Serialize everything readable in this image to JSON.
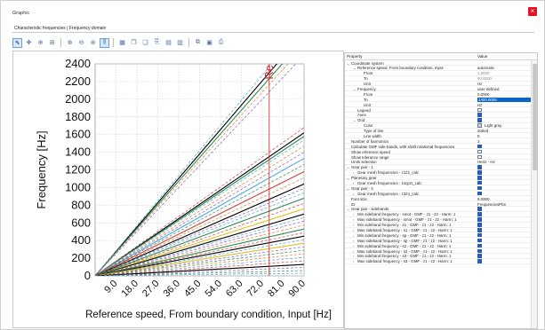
{
  "window": {
    "title": "Graphic",
    "close_glyph": "×"
  },
  "tabs": {
    "active": "Characteristic frequencies | Frequency domain"
  },
  "toolbar": {
    "icons": [
      "select-arrow-icon",
      "pan-icon",
      "zoom-in-icon",
      "zoom-box-icon",
      "zoom-window-icon",
      "zoom-out-icon",
      "zoom-fit-icon",
      "cursor-lines-icon",
      "grid-icon",
      "copy-icon",
      "copy-data-icon",
      "export-icon",
      "table-icon",
      "table-export-icon",
      "print-preview-icon",
      "save-icon",
      "print-icon"
    ]
  },
  "chart_data": {
    "type": "line",
    "xlabel": "Reference speed, From boundary condition, Input [Hz]",
    "ylabel": "Frequency [Hz]",
    "xlim": [
      0,
      90
    ],
    "ylim": [
      0,
      2400
    ],
    "x_ticks": [
      "9.0",
      "18.0",
      "27.0",
      "36.0",
      "45.0",
      "54.0",
      "63.0",
      "72.0",
      "81.0",
      "90.0"
    ],
    "y_ticks": [
      "0",
      "200",
      "400",
      "600",
      "800",
      "1000",
      "1200",
      "1400",
      "1600",
      "1800",
      "2000",
      "2200",
      "2400"
    ],
    "grid": true,
    "grid_style": "dotted",
    "grid_color": "#d3d3d3",
    "cursor": {
      "x": 75,
      "label": "Re"
    },
    "series": [
      {
        "end": 2760,
        "color": "#000000",
        "style": "solid"
      },
      {
        "end": 2680,
        "color": "#2e8b57",
        "style": "solid"
      },
      {
        "end": 2840,
        "color": "#4aa8d8",
        "style": "dashed"
      },
      {
        "end": 2600,
        "color": "#e08020",
        "style": "dashed"
      },
      {
        "end": 2500,
        "color": "#8a60c0",
        "style": "dashed"
      },
      {
        "end": 1620,
        "color": "#000000",
        "style": "solid"
      },
      {
        "end": 1580,
        "color": "#2e8b57",
        "style": "solid"
      },
      {
        "end": 1680,
        "color": "#d04040",
        "style": "dashed"
      },
      {
        "end": 1540,
        "color": "#4aa8d8",
        "style": "dashed"
      },
      {
        "end": 1470,
        "color": "#e08020",
        "style": "dashed"
      },
      {
        "end": 1400,
        "color": "#8a60c0",
        "style": "dashed"
      },
      {
        "end": 1330,
        "color": "#4aa8d8",
        "style": "solid"
      },
      {
        "end": 1260,
        "color": "#2e8b57",
        "style": "dashed"
      },
      {
        "end": 1180,
        "color": "#d04040",
        "style": "solid"
      },
      {
        "end": 1110,
        "color": "#e08020",
        "style": "dashed"
      },
      {
        "end": 1040,
        "color": "#000000",
        "style": "solid"
      },
      {
        "end": 990,
        "color": "#8a60c0",
        "style": "dashed"
      },
      {
        "end": 940,
        "color": "#4aa8d8",
        "style": "dashed"
      },
      {
        "end": 880,
        "color": "#2e8b57",
        "style": "solid"
      },
      {
        "end": 820,
        "color": "#d04040",
        "style": "dashed"
      },
      {
        "end": 760,
        "color": "#e0c020",
        "style": "solid"
      },
      {
        "end": 700,
        "color": "#000000",
        "style": "solid"
      },
      {
        "end": 660,
        "color": "#4aa8d8",
        "style": "dashed"
      },
      {
        "end": 620,
        "color": "#8a60c0",
        "style": "dashed"
      },
      {
        "end": 575,
        "color": "#e08020",
        "style": "dashed"
      },
      {
        "end": 530,
        "color": "#2e8b57",
        "style": "solid"
      },
      {
        "end": 490,
        "color": "#d04040",
        "style": "dashed"
      },
      {
        "end": 450,
        "color": "#000000",
        "style": "solid"
      },
      {
        "end": 410,
        "color": "#4aa8d8",
        "style": "dashed"
      },
      {
        "end": 370,
        "color": "#e0c020",
        "style": "solid"
      },
      {
        "end": 330,
        "color": "#8a60c0",
        "style": "dashed"
      },
      {
        "end": 290,
        "color": "#2e8b57",
        "style": "dashed"
      },
      {
        "end": 250,
        "color": "#e08020",
        "style": "dashed"
      },
      {
        "end": 210,
        "color": "#4aa8d8",
        "style": "dashed"
      },
      {
        "end": 170,
        "color": "#d04040",
        "style": "dashed"
      },
      {
        "end": 130,
        "color": "#000000",
        "style": "solid"
      },
      {
        "end": 95,
        "color": "#8a60c0",
        "style": "dashed"
      },
      {
        "end": 60,
        "color": "#2e8b57",
        "style": "dashed"
      },
      {
        "end": 30,
        "color": "#4aa8d8",
        "style": "dashed"
      }
    ]
  },
  "properties": {
    "header_property": "Property",
    "header_value": "Value",
    "rows": [
      {
        "level": 0,
        "twisty": "⌄",
        "name": "Coordinate system",
        "type": "text",
        "value": ""
      },
      {
        "level": 1,
        "twisty": "⌄",
        "name": "Reference speed, From boundary condition, Input",
        "type": "text",
        "value": "automatic"
      },
      {
        "level": 2,
        "twisty": "",
        "name": "From",
        "type": "text",
        "value": "1.0000",
        "gray": true
      },
      {
        "level": 2,
        "twisty": "",
        "name": "To",
        "type": "text",
        "value": "90.0000",
        "gray": true
      },
      {
        "level": 2,
        "twisty": "",
        "name": "Unit",
        "type": "text",
        "value": "Hz"
      },
      {
        "level": 1,
        "twisty": "⌄",
        "name": "Frequency",
        "type": "text",
        "value": "user-defined"
      },
      {
        "level": 2,
        "twisty": "",
        "name": "From",
        "type": "text",
        "value": "0.0000"
      },
      {
        "level": 2,
        "twisty": "",
        "name": "To",
        "type": "text",
        "value": "2400.0000",
        "selected": true
      },
      {
        "level": 2,
        "twisty": "",
        "name": "Unit",
        "type": "text",
        "value": "Hz"
      },
      {
        "level": 1,
        "twisty": "",
        "name": "Legend",
        "type": "check",
        "checked": false
      },
      {
        "level": 1,
        "twisty": "",
        "name": "Axes",
        "type": "check",
        "checked": true
      },
      {
        "level": 1,
        "twisty": "⌄",
        "name": "Grid",
        "type": "check",
        "checked": true
      },
      {
        "level": 2,
        "twisty": "",
        "name": "Color",
        "type": "color",
        "value": "Light gray",
        "swatch": "#d3d3d3"
      },
      {
        "level": 2,
        "twisty": "",
        "name": "Type of line",
        "type": "text",
        "value": "dotted"
      },
      {
        "level": 2,
        "twisty": "",
        "name": "Line width",
        "type": "text",
        "value": "0"
      },
      {
        "level": 0,
        "twisty": "",
        "name": "Number of harmonics",
        "type": "text",
        "value": "3"
      },
      {
        "level": 0,
        "twisty": "",
        "name": "Calculate GMF side-bands, with shaft rotational frequencies",
        "type": "check",
        "checked": true
      },
      {
        "level": 0,
        "twisty": "",
        "name": "Show reference speed",
        "type": "check",
        "checked": false
      },
      {
        "level": 0,
        "twisty": "",
        "name": "Show tolerance range",
        "type": "check",
        "checked": false
      },
      {
        "level": 0,
        "twisty": "",
        "name": "Units selection",
        "type": "text",
        "value": "Hertz - Hz"
      },
      {
        "level": 0,
        "twisty": "⌄",
        "name": "Gear pair - 1",
        "type": "check",
        "checked": true
      },
      {
        "level": 1,
        "twisty": "›",
        "name": "Gear mesh frequencies - z1z2_calc",
        "type": "check",
        "checked": true
      },
      {
        "level": 0,
        "twisty": "⌄",
        "name": "Planetary gear",
        "type": "check",
        "checked": true
      },
      {
        "level": 1,
        "twisty": "›",
        "name": "Gear mesh frequencies - zszpzr_calc",
        "type": "check",
        "checked": true
      },
      {
        "level": 0,
        "twisty": "⌄",
        "name": "Gear pair - 3",
        "type": "check",
        "checked": true
      },
      {
        "level": 1,
        "twisty": "›",
        "name": "Gear mesh frequencies - z3z4_calc",
        "type": "check",
        "checked": true
      },
      {
        "level": 0,
        "twisty": "",
        "name": "Font size",
        "type": "text",
        "value": "8.0000"
      },
      {
        "level": 0,
        "twisty": "",
        "name": "ID",
        "type": "text",
        "value": "FrequenciesPlot"
      },
      {
        "level": 0,
        "twisty": "⌄",
        "name": "Gear pair - sidebands",
        "type": "check",
        "checked": true
      },
      {
        "level": 1,
        "twisty": "›",
        "name": "Min sideband frequency - smot - GMF - z1 - z2 - Harm: 1",
        "type": "check",
        "checked": true
      },
      {
        "level": 1,
        "twisty": "›",
        "name": "Max sideband frequency - smot - GMF - z1 - z2 - Harm: 1",
        "type": "check",
        "checked": true
      },
      {
        "level": 1,
        "twisty": "›",
        "name": "Min sideband frequency - s1 - GMF - z1 - z2 - Harm: 1",
        "type": "check",
        "checked": true
      },
      {
        "level": 1,
        "twisty": "›",
        "name": "Max sideband frequency - s1 - GMF - z1 - z2 - Harm: 1",
        "type": "check",
        "checked": true
      },
      {
        "level": 1,
        "twisty": "›",
        "name": "Min sideband frequency - sp - GMF - z1 - z2 - Harm: 1",
        "type": "check",
        "checked": true
      },
      {
        "level": 1,
        "twisty": "›",
        "name": "Max sideband frequency - sp - GMF - z1 - z2 - Harm: 1",
        "type": "check",
        "checked": true
      },
      {
        "level": 1,
        "twisty": "›",
        "name": "Min sideband frequency - s2 - GMF - z1 - z2 - Harm: 1",
        "type": "check",
        "checked": true
      },
      {
        "level": 1,
        "twisty": "›",
        "name": "Max sideband frequency - s2 - GMF - z1 - z2 - Harm: 1",
        "type": "check",
        "checked": true
      },
      {
        "level": 1,
        "twisty": "›",
        "name": "Min sideband frequency - s3 - GMF - z1 - z2 - Harm: 1",
        "type": "check",
        "checked": true
      },
      {
        "level": 1,
        "twisty": "›",
        "name": "Max sideband frequency - s3 - GMF - z1 - z2 - Harm: 1",
        "type": "check",
        "checked": true
      }
    ]
  }
}
